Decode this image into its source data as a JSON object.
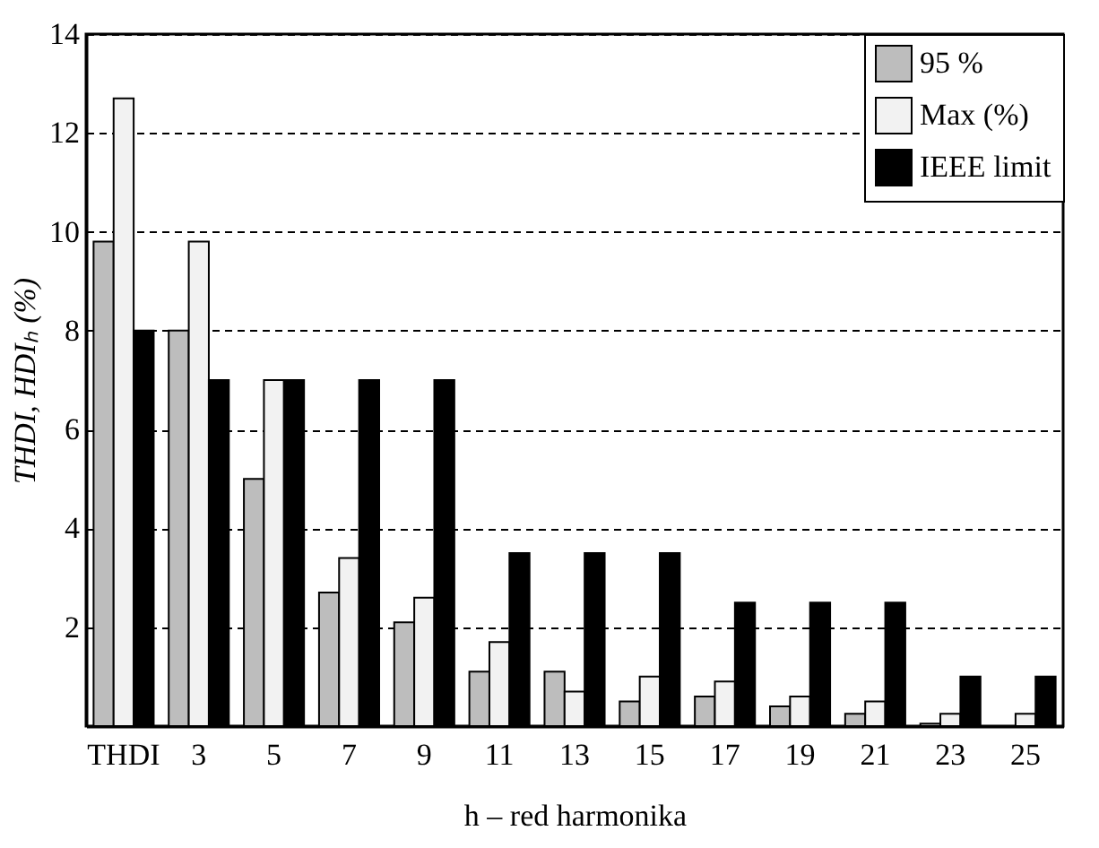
{
  "chart_data": {
    "type": "bar",
    "xlabel": "h – red harmonika",
    "ylabel": "THDI, HDIₕ (%)",
    "categories": [
      "THDI",
      "3",
      "5",
      "7",
      "9",
      "11",
      "13",
      "15",
      "17",
      "19",
      "21",
      "23",
      "25"
    ],
    "series": [
      {
        "name": "95 %",
        "color": "#bdbdbd",
        "values": [
          9.8,
          8.0,
          5.0,
          2.7,
          2.1,
          1.1,
          1.1,
          0.5,
          0.6,
          0.4,
          0.25,
          0.05,
          null
        ]
      },
      {
        "name": "Max (%)",
        "color": "#f2f2f2",
        "values": [
          12.7,
          9.8,
          7.0,
          3.4,
          2.6,
          1.7,
          0.7,
          1.0,
          0.9,
          0.6,
          0.5,
          0.25,
          0.25
        ]
      },
      {
        "name": "IEEE limit",
        "color": "#000000",
        "values": [
          8,
          7,
          7,
          7,
          7,
          3.5,
          3.5,
          3.5,
          2.5,
          2.5,
          2.5,
          1,
          1
        ]
      }
    ],
    "ylim": [
      0,
      14
    ],
    "yticks": [
      2,
      4,
      6,
      8,
      10,
      12,
      14
    ],
    "grid": "y",
    "legend": "top right"
  }
}
